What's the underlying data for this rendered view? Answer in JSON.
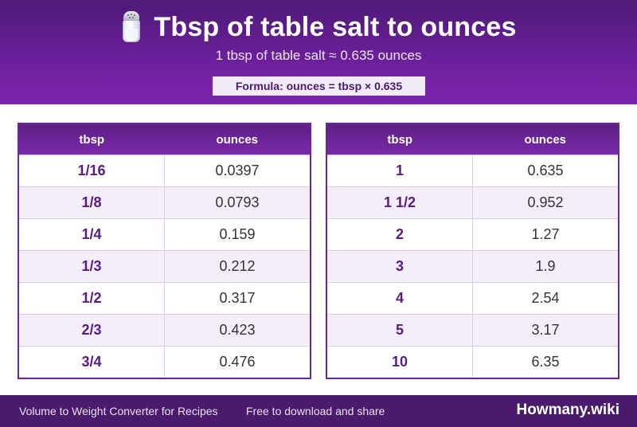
{
  "header": {
    "icon": "salt-shaker-icon",
    "title": "Tbsp of table salt to ounces",
    "subtitle": "1 tbsp of table salt ≈ 0.635 ounces",
    "formula": "Formula: ounces = tbsp × 0.635"
  },
  "tables": [
    {
      "headers": [
        "tbsp",
        "ounces"
      ],
      "rows": [
        [
          "1/16",
          "0.0397"
        ],
        [
          "1/8",
          "0.0793"
        ],
        [
          "1/4",
          "0.159"
        ],
        [
          "1/3",
          "0.212"
        ],
        [
          "1/2",
          "0.317"
        ],
        [
          "2/3",
          "0.423"
        ],
        [
          "3/4",
          "0.476"
        ]
      ]
    },
    {
      "headers": [
        "tbsp",
        "ounces"
      ],
      "rows": [
        [
          "1",
          "0.635"
        ],
        [
          "1 1/2",
          "0.952"
        ],
        [
          "2",
          "1.27"
        ],
        [
          "3",
          "1.9"
        ],
        [
          "4",
          "2.54"
        ],
        [
          "5",
          "3.17"
        ],
        [
          "10",
          "6.35"
        ]
      ]
    }
  ],
  "footer": {
    "left": "Volume to Weight Converter for Recipes",
    "middle": "Free to download and share",
    "brand": "Howmany.wiki"
  },
  "colors": {
    "header_purple": "#6a1f99",
    "footer_purple": "#4a1a6c",
    "accent_text": "#5a1a86"
  }
}
